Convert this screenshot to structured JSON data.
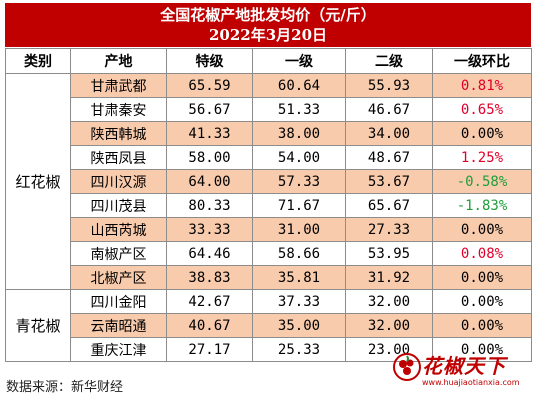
{
  "header": {
    "title": "全国花椒产地批发均价（元/斤）",
    "date": "2022年3月20日"
  },
  "columns": [
    "类别",
    "产地",
    "特级",
    "一级",
    "二级",
    "一级环比"
  ],
  "groups": [
    {
      "category": "红花椒",
      "rows": [
        {
          "origin": "甘肃武都",
          "special": "65.59",
          "grade1": "60.64",
          "grade2": "55.93",
          "change": "0.81%",
          "trend": "up"
        },
        {
          "origin": "甘肃秦安",
          "special": "56.67",
          "grade1": "51.33",
          "grade2": "46.67",
          "change": "0.65%",
          "trend": "up"
        },
        {
          "origin": "陕西韩城",
          "special": "41.33",
          "grade1": "38.00",
          "grade2": "34.00",
          "change": "0.00%",
          "trend": "flat"
        },
        {
          "origin": "陕西凤县",
          "special": "58.00",
          "grade1": "54.00",
          "grade2": "48.67",
          "change": "1.25%",
          "trend": "up"
        },
        {
          "origin": "四川汉源",
          "special": "64.00",
          "grade1": "57.33",
          "grade2": "53.67",
          "change": "-0.58%",
          "trend": "down"
        },
        {
          "origin": "四川茂县",
          "special": "80.33",
          "grade1": "71.67",
          "grade2": "65.67",
          "change": "-1.83%",
          "trend": "down"
        },
        {
          "origin": "山西芮城",
          "special": "33.33",
          "grade1": "31.00",
          "grade2": "27.33",
          "change": "0.00%",
          "trend": "flat"
        },
        {
          "origin": "南椒产区",
          "special": "64.46",
          "grade1": "58.66",
          "grade2": "53.95",
          "change": "0.08%",
          "trend": "up"
        },
        {
          "origin": "北椒产区",
          "special": "38.83",
          "grade1": "35.81",
          "grade2": "31.92",
          "change": "0.00%",
          "trend": "flat"
        }
      ]
    },
    {
      "category": "青花椒",
      "rows": [
        {
          "origin": "四川金阳",
          "special": "42.67",
          "grade1": "37.33",
          "grade2": "32.00",
          "change": "0.00%",
          "trend": "flat"
        },
        {
          "origin": "云南昭通",
          "special": "40.67",
          "grade1": "35.00",
          "grade2": "32.00",
          "change": "0.00%",
          "trend": "flat"
        },
        {
          "origin": "重庆江津",
          "special": "27.17",
          "grade1": "25.33",
          "grade2": "23.00",
          "change": "0.00%",
          "trend": "flat"
        }
      ]
    }
  ],
  "source": "数据来源：新华财经",
  "watermark": {
    "title": "花椒天下",
    "url": "www.huajiaotianxia.com",
    "logo": "pepper-logo-icon",
    "color": "#c00000"
  },
  "colors": {
    "header_bg": "#c00000",
    "row_shade": "#f8cbad",
    "up": "#e0002b",
    "down": "#1f9e3a"
  }
}
